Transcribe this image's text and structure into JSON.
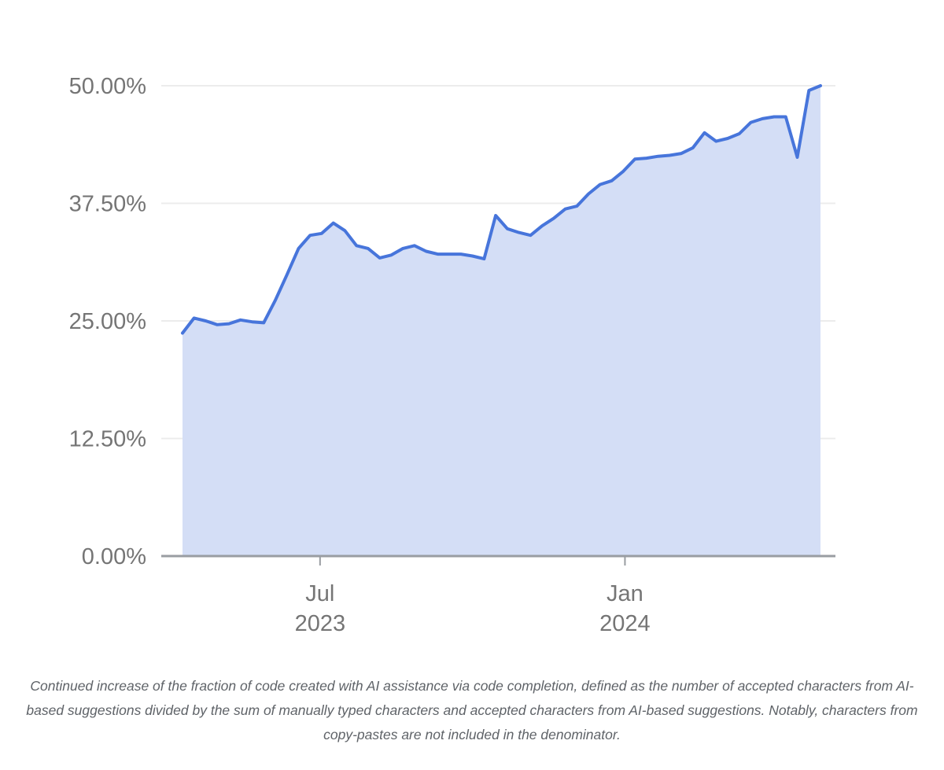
{
  "page": {
    "background": "#ffffff"
  },
  "chart_data": {
    "type": "area",
    "title": "",
    "xlabel": "",
    "ylabel": "",
    "legend": "none",
    "grid": "horizontal",
    "ylim": [
      0,
      50
    ],
    "xlim": [
      "2023-04-09",
      "2024-04-28"
    ],
    "y_ticks": [
      {
        "label": "50.00%",
        "value": 50
      },
      {
        "label": "37.50%",
        "value": 37.5
      },
      {
        "label": "25.00%",
        "value": 25
      },
      {
        "label": "12.50%",
        "value": 12.5
      },
      {
        "label": "0.00%",
        "value": 0
      }
    ],
    "x_ticks": [
      {
        "line1": "Jul",
        "line2": "2023",
        "date": "2023-07-01"
      },
      {
        "line1": "Jan",
        "line2": "2024",
        "date": "2024-01-01"
      }
    ],
    "series": [
      {
        "name": "Fraction of code created with AI assistance via code completion (%)",
        "x": [
          "2023-04-09",
          "2023-04-16",
          "2023-04-23",
          "2023-04-30",
          "2023-05-07",
          "2023-05-14",
          "2023-05-21",
          "2023-05-28",
          "2023-06-04",
          "2023-06-11",
          "2023-06-18",
          "2023-06-25",
          "2023-07-02",
          "2023-07-09",
          "2023-07-16",
          "2023-07-23",
          "2023-07-30",
          "2023-08-06",
          "2023-08-13",
          "2023-08-20",
          "2023-08-27",
          "2023-09-03",
          "2023-09-10",
          "2023-09-17",
          "2023-09-24",
          "2023-10-01",
          "2023-10-08",
          "2023-10-15",
          "2023-10-22",
          "2023-10-29",
          "2023-11-05",
          "2023-11-12",
          "2023-11-19",
          "2023-11-26",
          "2023-12-03",
          "2023-12-10",
          "2023-12-17",
          "2023-12-24",
          "2023-12-31",
          "2024-01-07",
          "2024-01-14",
          "2024-01-21",
          "2024-01-28",
          "2024-02-04",
          "2024-02-11",
          "2024-02-18",
          "2024-02-25",
          "2024-03-03",
          "2024-03-10",
          "2024-03-17",
          "2024-03-24",
          "2024-03-31",
          "2024-04-07",
          "2024-04-14",
          "2024-04-21",
          "2024-04-28"
        ],
        "values": [
          23.7,
          25.3,
          25.0,
          24.6,
          24.7,
          25.1,
          24.9,
          24.8,
          27.2,
          29.9,
          32.7,
          34.1,
          34.3,
          35.4,
          34.6,
          33.0,
          32.7,
          31.7,
          32.0,
          32.7,
          33.0,
          32.4,
          32.1,
          32.1,
          32.1,
          31.9,
          31.6,
          36.2,
          34.8,
          34.4,
          34.1,
          35.1,
          35.9,
          36.9,
          37.2,
          38.5,
          39.5,
          39.9,
          40.9,
          42.2,
          42.3,
          42.5,
          42.6,
          42.8,
          43.4,
          45.0,
          44.1,
          44.4,
          44.9,
          46.1,
          46.5,
          46.7,
          46.7,
          42.4,
          49.5,
          50.0
        ]
      }
    ],
    "colors": {
      "line": "#4775db",
      "fill": "#d4def6",
      "gridline": "#ececec",
      "axis": "#999da2",
      "tick_label": "#757575",
      "caption": "#5f6368"
    }
  },
  "caption": {
    "lines": [
      "Continued increase of the fraction of code created with AI assistance via code completion, defined as the number of accepted characters from AI-",
      "based suggestions divided by the sum of manually typed characters and accepted characters from AI-based suggestions. Notably, characters from",
      "copy-pastes are not included in the denominator."
    ]
  }
}
